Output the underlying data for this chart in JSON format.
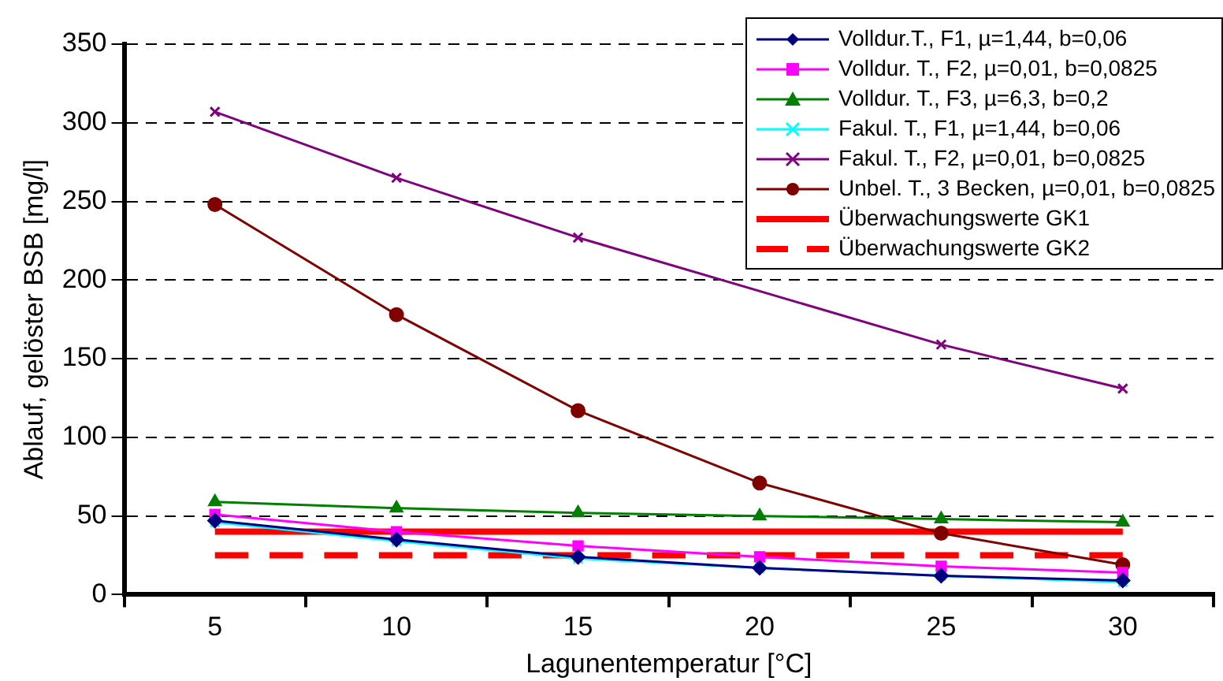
{
  "chart_data": {
    "type": "line",
    "xlabel": "Lagunentemperatur [°C]",
    "ylabel": "Ablauf, gelöster BSB [mg/l]",
    "categories": [
      "5",
      "10",
      "15",
      "20",
      "25",
      "30"
    ],
    "ylim": [
      0,
      350
    ],
    "yticks": [
      0,
      50,
      100,
      150,
      200,
      250,
      300,
      350
    ],
    "grid": "y",
    "legend": "top right",
    "series": [
      {
        "name": "Volldur.T., F1, µ=1,44, b=0,06",
        "color": "#000080",
        "marker": "diamond",
        "values": [
          47,
          35,
          24,
          17,
          12,
          9
        ]
      },
      {
        "name": "Volldur. T., F2, µ=0,01, b=0,0825",
        "color": "#ff00ff",
        "marker": "square",
        "values": [
          51,
          40,
          31,
          24,
          18,
          14
        ]
      },
      {
        "name": "Volldur. T., F3, µ=6,3, b=0,2",
        "color": "#008000",
        "marker": "triangle",
        "values": [
          59,
          55,
          52,
          50,
          48,
          46
        ]
      },
      {
        "name": "Fakul. T., F1, µ=1,44, b=0,06",
        "color": "#00ffff",
        "marker": "cross",
        "values": [
          46,
          34,
          23,
          17,
          12,
          8
        ]
      },
      {
        "name": "Fakul. T., F2, µ=0,01, b=0,0825",
        "color": "#800080",
        "marker": "cross",
        "values": [
          307,
          265,
          227,
          null,
          159,
          131
        ]
      },
      {
        "name": "Unbel. T., 3 Becken, µ=0,01, b=0,0825",
        "color": "#800000",
        "marker": "circle",
        "values": [
          248,
          178,
          117,
          71,
          39,
          19
        ]
      },
      {
        "name": "Überwachungswerte GK1",
        "color": "#ff0000",
        "marker": "none",
        "line_style": "solid",
        "values": [
          40,
          40,
          40,
          40,
          40,
          40
        ]
      },
      {
        "name": "Überwachungswerte GK2",
        "color": "#ff0000",
        "marker": "none",
        "line_style": "dashed",
        "values": [
          25,
          25,
          25,
          25,
          25,
          25
        ]
      }
    ]
  }
}
